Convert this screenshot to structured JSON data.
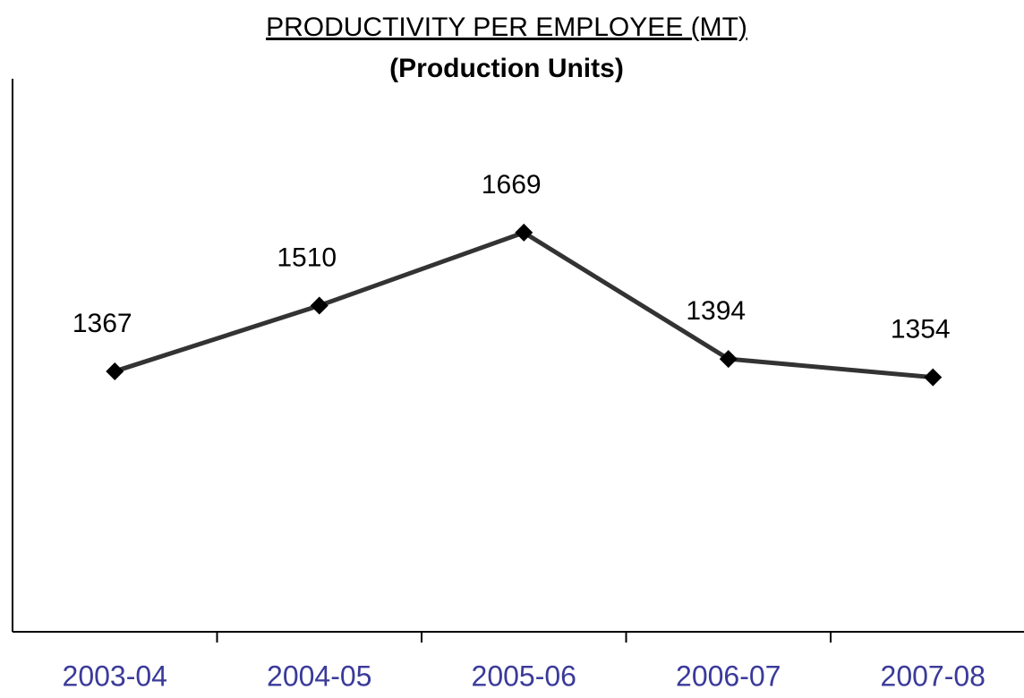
{
  "chart_data": {
    "type": "line",
    "title": "PRODUCTIVITY  PER  EMPLOYEE (MT)",
    "subtitle": "(Production Units)",
    "categories": [
      "2003-04",
      "2004-05",
      "2005-06",
      "2006-07",
      "2007-08"
    ],
    "series": [
      {
        "name": "Productivity",
        "color": "#333333",
        "values": [
          1367,
          1510,
          1669,
          1394,
          1354
        ]
      }
    ],
    "ylim": [
      800,
      2000
    ]
  }
}
